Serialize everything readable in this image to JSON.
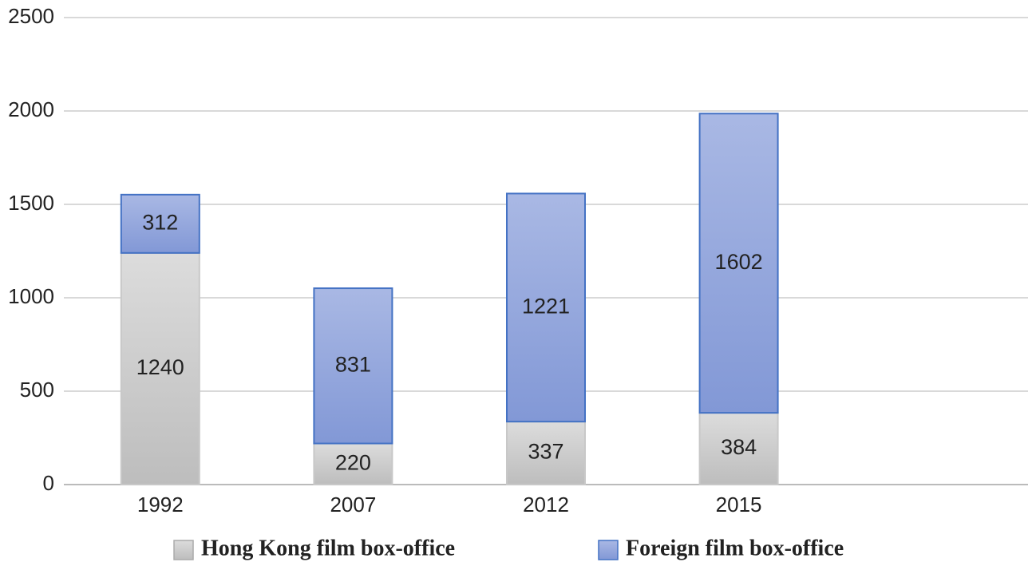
{
  "chart_data": {
    "type": "stacked_bar",
    "categories": [
      "1992",
      "2007",
      "2012",
      "2015",
      null
    ],
    "series": [
      {
        "name": "Hong Kong film box-office",
        "color": "#c8c8c8",
        "values": [
          1240,
          220,
          337,
          384,
          null
        ]
      },
      {
        "name": "Foreign film box-office",
        "color": "#8fa3dc",
        "values": [
          312,
          831,
          1221,
          1602,
          null
        ]
      }
    ],
    "ylim": [
      0,
      2500
    ],
    "yticks": [
      0,
      500,
      1000,
      1500,
      2000,
      2500
    ],
    "grid": true,
    "legend": "bottom"
  }
}
